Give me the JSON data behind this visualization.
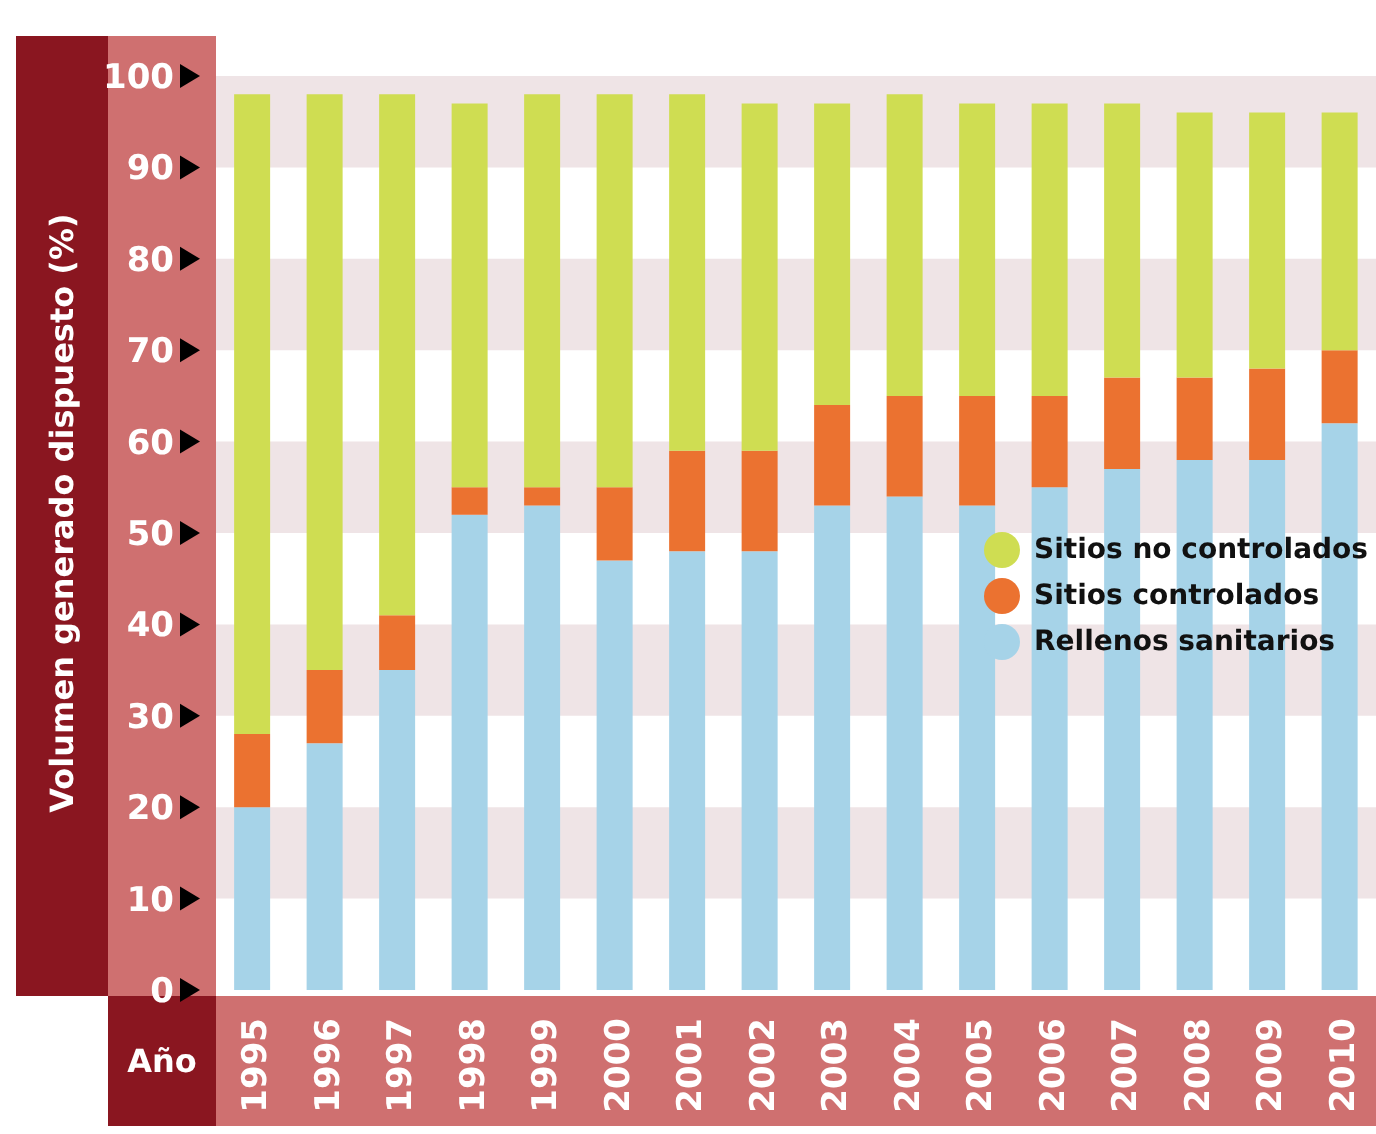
{
  "chart_data": {
    "type": "bar",
    "stacked": true,
    "xlabel": "Año",
    "ylabel": "Volumen generado dispuesto (%)",
    "categories": [
      "1995",
      "1996",
      "1997",
      "1998",
      "1999",
      "2000",
      "2001",
      "2002",
      "2003",
      "2004",
      "2005",
      "2006",
      "2007",
      "2008",
      "2009",
      "2010"
    ],
    "series": [
      {
        "name": "Rellenos sanitarios",
        "color": "#a6d3e8",
        "values": [
          20,
          27,
          35,
          52,
          53,
          47,
          48,
          48,
          53,
          54,
          53,
          55,
          57,
          58,
          58,
          62
        ]
      },
      {
        "name": "Sitios controlados",
        "color": "#eb7230",
        "values": [
          8,
          8,
          6,
          3,
          2,
          8,
          11,
          11,
          11,
          11,
          12,
          10,
          10,
          9,
          10,
          8
        ]
      },
      {
        "name": "Sitios no controlados",
        "color": "#cfdd52",
        "values": [
          70,
          63,
          57,
          42,
          43,
          43,
          39,
          38,
          33,
          33,
          32,
          32,
          30,
          29,
          28,
          26
        ]
      }
    ],
    "ylim": [
      0,
      100
    ],
    "yticks": [
      0,
      10,
      20,
      30,
      40,
      50,
      60,
      70,
      80,
      90,
      100
    ],
    "bands": [
      {
        "axis": "y",
        "from": 10,
        "to": 20,
        "color": "#efe4e6"
      },
      {
        "axis": "y",
        "from": 30,
        "to": 40,
        "color": "#efe4e6"
      },
      {
        "axis": "y",
        "from": 50,
        "to": 60,
        "color": "#efe4e6"
      },
      {
        "axis": "y",
        "from": 70,
        "to": 80,
        "color": "#efe4e6"
      },
      {
        "axis": "y",
        "from": 90,
        "to": 100,
        "color": "#efe4e6"
      }
    ],
    "legend": "right",
    "grid": false
  }
}
